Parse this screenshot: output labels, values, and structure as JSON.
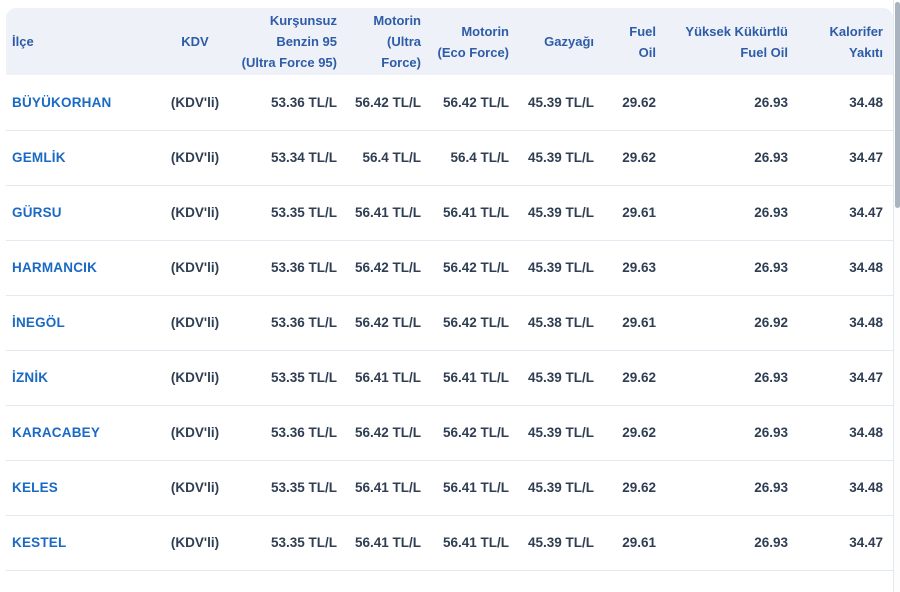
{
  "colors": {
    "page-bg": "#ffffff",
    "header-bg": "#eef1f7",
    "header-text": "#2d5ca8",
    "link-blue": "#1a6ac4",
    "value-text": "#2f3e52",
    "row-border": "#e4e9f1",
    "scroll-thumb": "#aab3c0",
    "track-border": "#e2e8f0"
  },
  "table": {
    "columns": [
      {
        "key": "ilce",
        "label": "İlçe",
        "align": "left"
      },
      {
        "key": "kdv",
        "label": "KDV",
        "align": "center"
      },
      {
        "key": "benzin95",
        "label": "Kurşunsuz\nBenzin 95\n(Ultra Force 95)",
        "align": "right"
      },
      {
        "key": "motorin-ultra",
        "label": "Motorin\n(Ultra\nForce)",
        "align": "right"
      },
      {
        "key": "motorin-eco",
        "label": "Motorin\n(Eco Force)",
        "align": "right"
      },
      {
        "key": "gazyagi",
        "label": "Gazyağı",
        "align": "right"
      },
      {
        "key": "fuel-oil",
        "label": "Fuel\nOil",
        "align": "right"
      },
      {
        "key": "yuksek-kukurtlu",
        "label": "Yüksek Kükürtlü\nFuel Oil",
        "align": "right"
      },
      {
        "key": "kalorifer",
        "label": "Kalorifer\nYakıtı",
        "align": "right"
      }
    ],
    "rows": [
      {
        "district": "BÜYÜKORHAN",
        "kdv": "(KDV'li)",
        "values": [
          "53.36 TL/L",
          "56.42 TL/L",
          "56.42 TL/L",
          "45.39 TL/L",
          "29.62",
          "26.93",
          "34.48"
        ]
      },
      {
        "district": "GEMLİK",
        "kdv": "(KDV'li)",
        "values": [
          "53.34 TL/L",
          "56.4 TL/L",
          "56.4 TL/L",
          "45.39 TL/L",
          "29.62",
          "26.93",
          "34.47"
        ]
      },
      {
        "district": "GÜRSU",
        "kdv": "(KDV'li)",
        "values": [
          "53.35 TL/L",
          "56.41 TL/L",
          "56.41 TL/L",
          "45.39 TL/L",
          "29.61",
          "26.93",
          "34.47"
        ]
      },
      {
        "district": "HARMANCIK",
        "kdv": "(KDV'li)",
        "values": [
          "53.36 TL/L",
          "56.42 TL/L",
          "56.42 TL/L",
          "45.39 TL/L",
          "29.63",
          "26.93",
          "34.48"
        ]
      },
      {
        "district": "İNEGÖL",
        "kdv": "(KDV'li)",
        "values": [
          "53.36 TL/L",
          "56.42 TL/L",
          "56.42 TL/L",
          "45.38 TL/L",
          "29.61",
          "26.92",
          "34.48"
        ]
      },
      {
        "district": "İZNİK",
        "kdv": "(KDV'li)",
        "values": [
          "53.35 TL/L",
          "56.41 TL/L",
          "56.41 TL/L",
          "45.39 TL/L",
          "29.62",
          "26.93",
          "34.47"
        ]
      },
      {
        "district": "KARACABEY",
        "kdv": "(KDV'li)",
        "values": [
          "53.36 TL/L",
          "56.42 TL/L",
          "56.42 TL/L",
          "45.39 TL/L",
          "29.62",
          "26.93",
          "34.48"
        ]
      },
      {
        "district": "KELES",
        "kdv": "(KDV'li)",
        "values": [
          "53.35 TL/L",
          "56.41 TL/L",
          "56.41 TL/L",
          "45.39 TL/L",
          "29.62",
          "26.93",
          "34.48"
        ]
      },
      {
        "district": "KESTEL",
        "kdv": "(KDV'li)",
        "values": [
          "53.35 TL/L",
          "56.41 TL/L",
          "56.41 TL/L",
          "45.39 TL/L",
          "29.61",
          "26.93",
          "34.47"
        ]
      }
    ]
  }
}
